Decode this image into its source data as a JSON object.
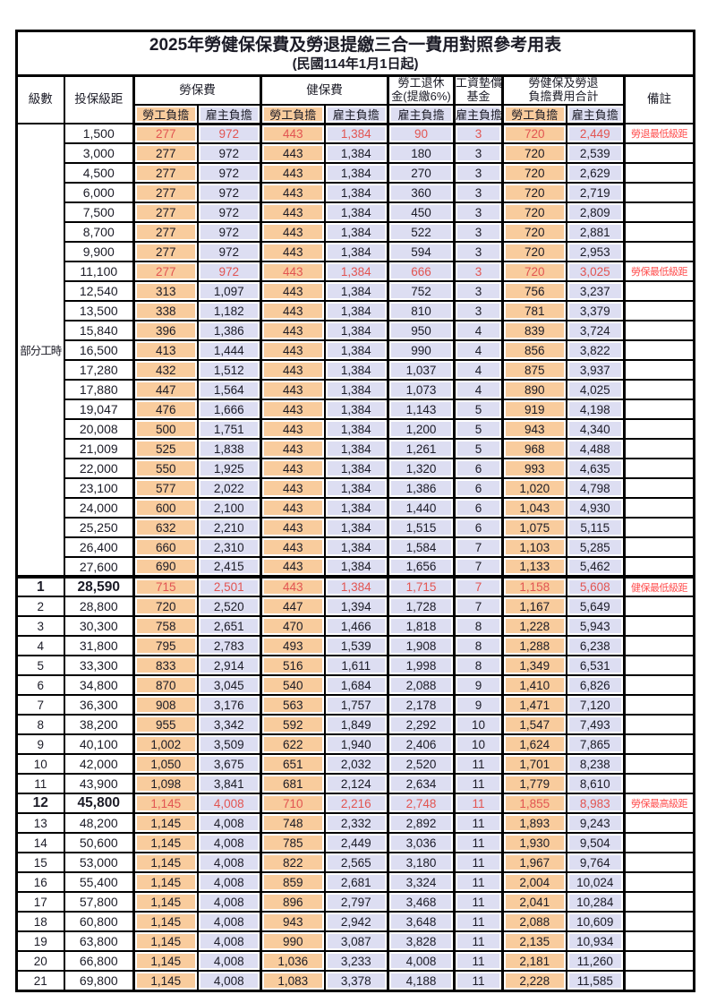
{
  "title": "2025年勞健保保費及勞退提繳三合一費用對照參考用表",
  "subtitle": "(民國114年1月1日起)",
  "colors": {
    "employee_bg": "#F9CC9D",
    "employer_bg": "#DDDEF2",
    "highlight": "#E25552",
    "note_red": "#FF4D4D",
    "text": "#1B1B26",
    "border": "#000000"
  },
  "header": {
    "level": "級數",
    "bracket": "投保級距",
    "labor_fee": "勞保費",
    "health_fee": "健保費",
    "pension_line1": "勞工退休",
    "pension_line2": "金(提繳6%)",
    "wage_fund_line1": "工資墊償",
    "wage_fund_line2": "基金",
    "total_line1": "勞健保及勞退",
    "total_line2": "負擔費用合計",
    "remark": "備註",
    "employee_share": "勞工負擔",
    "employer_share": "雇主負擔"
  },
  "table": {
    "part_time_label": "部分工時",
    "part_time_rowspan": 23,
    "thick_divider_row": 23,
    "rows": [
      {
        "level": "",
        "bracket": "1,500",
        "cells": [
          "277",
          "972",
          "443",
          "1,384",
          "90",
          "3",
          "720",
          "2,449"
        ],
        "note": "勞退最低級距",
        "red": true,
        "bold": false
      },
      {
        "level": "",
        "bracket": "3,000",
        "cells": [
          "277",
          "972",
          "443",
          "1,384",
          "180",
          "3",
          "720",
          "2,539"
        ],
        "note": "",
        "red": false,
        "bold": false
      },
      {
        "level": "",
        "bracket": "4,500",
        "cells": [
          "277",
          "972",
          "443",
          "1,384",
          "270",
          "3",
          "720",
          "2,629"
        ],
        "note": "",
        "red": false,
        "bold": false
      },
      {
        "level": "",
        "bracket": "6,000",
        "cells": [
          "277",
          "972",
          "443",
          "1,384",
          "360",
          "3",
          "720",
          "2,719"
        ],
        "note": "",
        "red": false,
        "bold": false
      },
      {
        "level": "",
        "bracket": "7,500",
        "cells": [
          "277",
          "972",
          "443",
          "1,384",
          "450",
          "3",
          "720",
          "2,809"
        ],
        "note": "",
        "red": false,
        "bold": false
      },
      {
        "level": "",
        "bracket": "8,700",
        "cells": [
          "277",
          "972",
          "443",
          "1,384",
          "522",
          "3",
          "720",
          "2,881"
        ],
        "note": "",
        "red": false,
        "bold": false
      },
      {
        "level": "",
        "bracket": "9,900",
        "cells": [
          "277",
          "972",
          "443",
          "1,384",
          "594",
          "3",
          "720",
          "2,953"
        ],
        "note": "",
        "red": false,
        "bold": false
      },
      {
        "level": "",
        "bracket": "11,100",
        "cells": [
          "277",
          "972",
          "443",
          "1,384",
          "666",
          "3",
          "720",
          "3,025"
        ],
        "note": "勞保最低級距",
        "red": true,
        "bold": false
      },
      {
        "level": "",
        "bracket": "12,540",
        "cells": [
          "313",
          "1,097",
          "443",
          "1,384",
          "752",
          "3",
          "756",
          "3,237"
        ],
        "note": "",
        "red": false,
        "bold": false
      },
      {
        "level": "",
        "bracket": "13,500",
        "cells": [
          "338",
          "1,182",
          "443",
          "1,384",
          "810",
          "3",
          "781",
          "3,379"
        ],
        "note": "",
        "red": false,
        "bold": false
      },
      {
        "level": "",
        "bracket": "15,840",
        "cells": [
          "396",
          "1,386",
          "443",
          "1,384",
          "950",
          "4",
          "839",
          "3,724"
        ],
        "note": "",
        "red": false,
        "bold": false
      },
      {
        "level": "",
        "bracket": "16,500",
        "cells": [
          "413",
          "1,444",
          "443",
          "1,384",
          "990",
          "4",
          "856",
          "3,822"
        ],
        "note": "",
        "red": false,
        "bold": false
      },
      {
        "level": "",
        "bracket": "17,280",
        "cells": [
          "432",
          "1,512",
          "443",
          "1,384",
          "1,037",
          "4",
          "875",
          "3,937"
        ],
        "note": "",
        "red": false,
        "bold": false
      },
      {
        "level": "",
        "bracket": "17,880",
        "cells": [
          "447",
          "1,564",
          "443",
          "1,384",
          "1,073",
          "4",
          "890",
          "4,025"
        ],
        "note": "",
        "red": false,
        "bold": false
      },
      {
        "level": "",
        "bracket": "19,047",
        "cells": [
          "476",
          "1,666",
          "443",
          "1,384",
          "1,143",
          "5",
          "919",
          "4,198"
        ],
        "note": "",
        "red": false,
        "bold": false
      },
      {
        "level": "",
        "bracket": "20,008",
        "cells": [
          "500",
          "1,751",
          "443",
          "1,384",
          "1,200",
          "5",
          "943",
          "4,340"
        ],
        "note": "",
        "red": false,
        "bold": false
      },
      {
        "level": "",
        "bracket": "21,009",
        "cells": [
          "525",
          "1,838",
          "443",
          "1,384",
          "1,261",
          "5",
          "968",
          "4,488"
        ],
        "note": "",
        "red": false,
        "bold": false
      },
      {
        "level": "",
        "bracket": "22,000",
        "cells": [
          "550",
          "1,925",
          "443",
          "1,384",
          "1,320",
          "6",
          "993",
          "4,635"
        ],
        "note": "",
        "red": false,
        "bold": false
      },
      {
        "level": "",
        "bracket": "23,100",
        "cells": [
          "577",
          "2,022",
          "443",
          "1,384",
          "1,386",
          "6",
          "1,020",
          "4,798"
        ],
        "note": "",
        "red": false,
        "bold": false
      },
      {
        "level": "",
        "bracket": "24,000",
        "cells": [
          "600",
          "2,100",
          "443",
          "1,384",
          "1,440",
          "6",
          "1,043",
          "4,930"
        ],
        "note": "",
        "red": false,
        "bold": false
      },
      {
        "level": "",
        "bracket": "25,250",
        "cells": [
          "632",
          "2,210",
          "443",
          "1,384",
          "1,515",
          "6",
          "1,075",
          "5,115"
        ],
        "note": "",
        "red": false,
        "bold": false
      },
      {
        "level": "",
        "bracket": "26,400",
        "cells": [
          "660",
          "2,310",
          "443",
          "1,384",
          "1,584",
          "7",
          "1,103",
          "5,285"
        ],
        "note": "",
        "red": false,
        "bold": false
      },
      {
        "level": "",
        "bracket": "27,600",
        "cells": [
          "690",
          "2,415",
          "443",
          "1,384",
          "1,656",
          "7",
          "1,133",
          "5,462"
        ],
        "note": "",
        "red": false,
        "bold": false
      },
      {
        "level": "1",
        "bracket": "28,590",
        "cells": [
          "715",
          "2,501",
          "443",
          "1,384",
          "1,715",
          "7",
          "1,158",
          "5,608"
        ],
        "note": "健保最低級距",
        "red": true,
        "bold": true
      },
      {
        "level": "2",
        "bracket": "28,800",
        "cells": [
          "720",
          "2,520",
          "447",
          "1,394",
          "1,728",
          "7",
          "1,167",
          "5,649"
        ],
        "note": "",
        "red": false,
        "bold": false
      },
      {
        "level": "3",
        "bracket": "30,300",
        "cells": [
          "758",
          "2,651",
          "470",
          "1,466",
          "1,818",
          "8",
          "1,228",
          "5,943"
        ],
        "note": "",
        "red": false,
        "bold": false
      },
      {
        "level": "4",
        "bracket": "31,800",
        "cells": [
          "795",
          "2,783",
          "493",
          "1,539",
          "1,908",
          "8",
          "1,288",
          "6,238"
        ],
        "note": "",
        "red": false,
        "bold": false
      },
      {
        "level": "5",
        "bracket": "33,300",
        "cells": [
          "833",
          "2,914",
          "516",
          "1,611",
          "1,998",
          "8",
          "1,349",
          "6,531"
        ],
        "note": "",
        "red": false,
        "bold": false
      },
      {
        "level": "6",
        "bracket": "34,800",
        "cells": [
          "870",
          "3,045",
          "540",
          "1,684",
          "2,088",
          "9",
          "1,410",
          "6,826"
        ],
        "note": "",
        "red": false,
        "bold": false
      },
      {
        "level": "7",
        "bracket": "36,300",
        "cells": [
          "908",
          "3,176",
          "563",
          "1,757",
          "2,178",
          "9",
          "1,471",
          "7,120"
        ],
        "note": "",
        "red": false,
        "bold": false
      },
      {
        "level": "8",
        "bracket": "38,200",
        "cells": [
          "955",
          "3,342",
          "592",
          "1,849",
          "2,292",
          "10",
          "1,547",
          "7,493"
        ],
        "note": "",
        "red": false,
        "bold": false
      },
      {
        "level": "9",
        "bracket": "40,100",
        "cells": [
          "1,002",
          "3,509",
          "622",
          "1,940",
          "2,406",
          "10",
          "1,624",
          "7,865"
        ],
        "note": "",
        "red": false,
        "bold": false
      },
      {
        "level": "10",
        "bracket": "42,000",
        "cells": [
          "1,050",
          "3,675",
          "651",
          "2,032",
          "2,520",
          "11",
          "1,701",
          "8,238"
        ],
        "note": "",
        "red": false,
        "bold": false
      },
      {
        "level": "11",
        "bracket": "43,900",
        "cells": [
          "1,098",
          "3,841",
          "681",
          "2,124",
          "2,634",
          "11",
          "1,779",
          "8,610"
        ],
        "note": "",
        "red": false,
        "bold": false
      },
      {
        "level": "12",
        "bracket": "45,800",
        "cells": [
          "1,145",
          "4,008",
          "710",
          "2,216",
          "2,748",
          "11",
          "1,855",
          "8,983"
        ],
        "note": "勞保最高級距",
        "red": true,
        "bold": true
      },
      {
        "level": "13",
        "bracket": "48,200",
        "cells": [
          "1,145",
          "4,008",
          "748",
          "2,332",
          "2,892",
          "11",
          "1,893",
          "9,243"
        ],
        "note": "",
        "red": false,
        "bold": false
      },
      {
        "level": "14",
        "bracket": "50,600",
        "cells": [
          "1,145",
          "4,008",
          "785",
          "2,449",
          "3,036",
          "11",
          "1,930",
          "9,504"
        ],
        "note": "",
        "red": false,
        "bold": false
      },
      {
        "level": "15",
        "bracket": "53,000",
        "cells": [
          "1,145",
          "4,008",
          "822",
          "2,565",
          "3,180",
          "11",
          "1,967",
          "9,764"
        ],
        "note": "",
        "red": false,
        "bold": false
      },
      {
        "level": "16",
        "bracket": "55,400",
        "cells": [
          "1,145",
          "4,008",
          "859",
          "2,681",
          "3,324",
          "11",
          "2,004",
          "10,024"
        ],
        "note": "",
        "red": false,
        "bold": false
      },
      {
        "level": "17",
        "bracket": "57,800",
        "cells": [
          "1,145",
          "4,008",
          "896",
          "2,797",
          "3,468",
          "11",
          "2,041",
          "10,284"
        ],
        "note": "",
        "red": false,
        "bold": false
      },
      {
        "level": "18",
        "bracket": "60,800",
        "cells": [
          "1,145",
          "4,008",
          "943",
          "2,942",
          "3,648",
          "11",
          "2,088",
          "10,609"
        ],
        "note": "",
        "red": false,
        "bold": false
      },
      {
        "level": "19",
        "bracket": "63,800",
        "cells": [
          "1,145",
          "4,008",
          "990",
          "3,087",
          "3,828",
          "11",
          "2,135",
          "10,934"
        ],
        "note": "",
        "red": false,
        "bold": false
      },
      {
        "level": "20",
        "bracket": "66,800",
        "cells": [
          "1,145",
          "4,008",
          "1,036",
          "3,233",
          "4,008",
          "11",
          "2,181",
          "11,260"
        ],
        "note": "",
        "red": false,
        "bold": false
      },
      {
        "level": "21",
        "bracket": "69,800",
        "cells": [
          "1,145",
          "4,008",
          "1,083",
          "3,378",
          "4,188",
          "11",
          "2,228",
          "11,585"
        ],
        "note": "",
        "red": false,
        "bold": false
      }
    ]
  }
}
